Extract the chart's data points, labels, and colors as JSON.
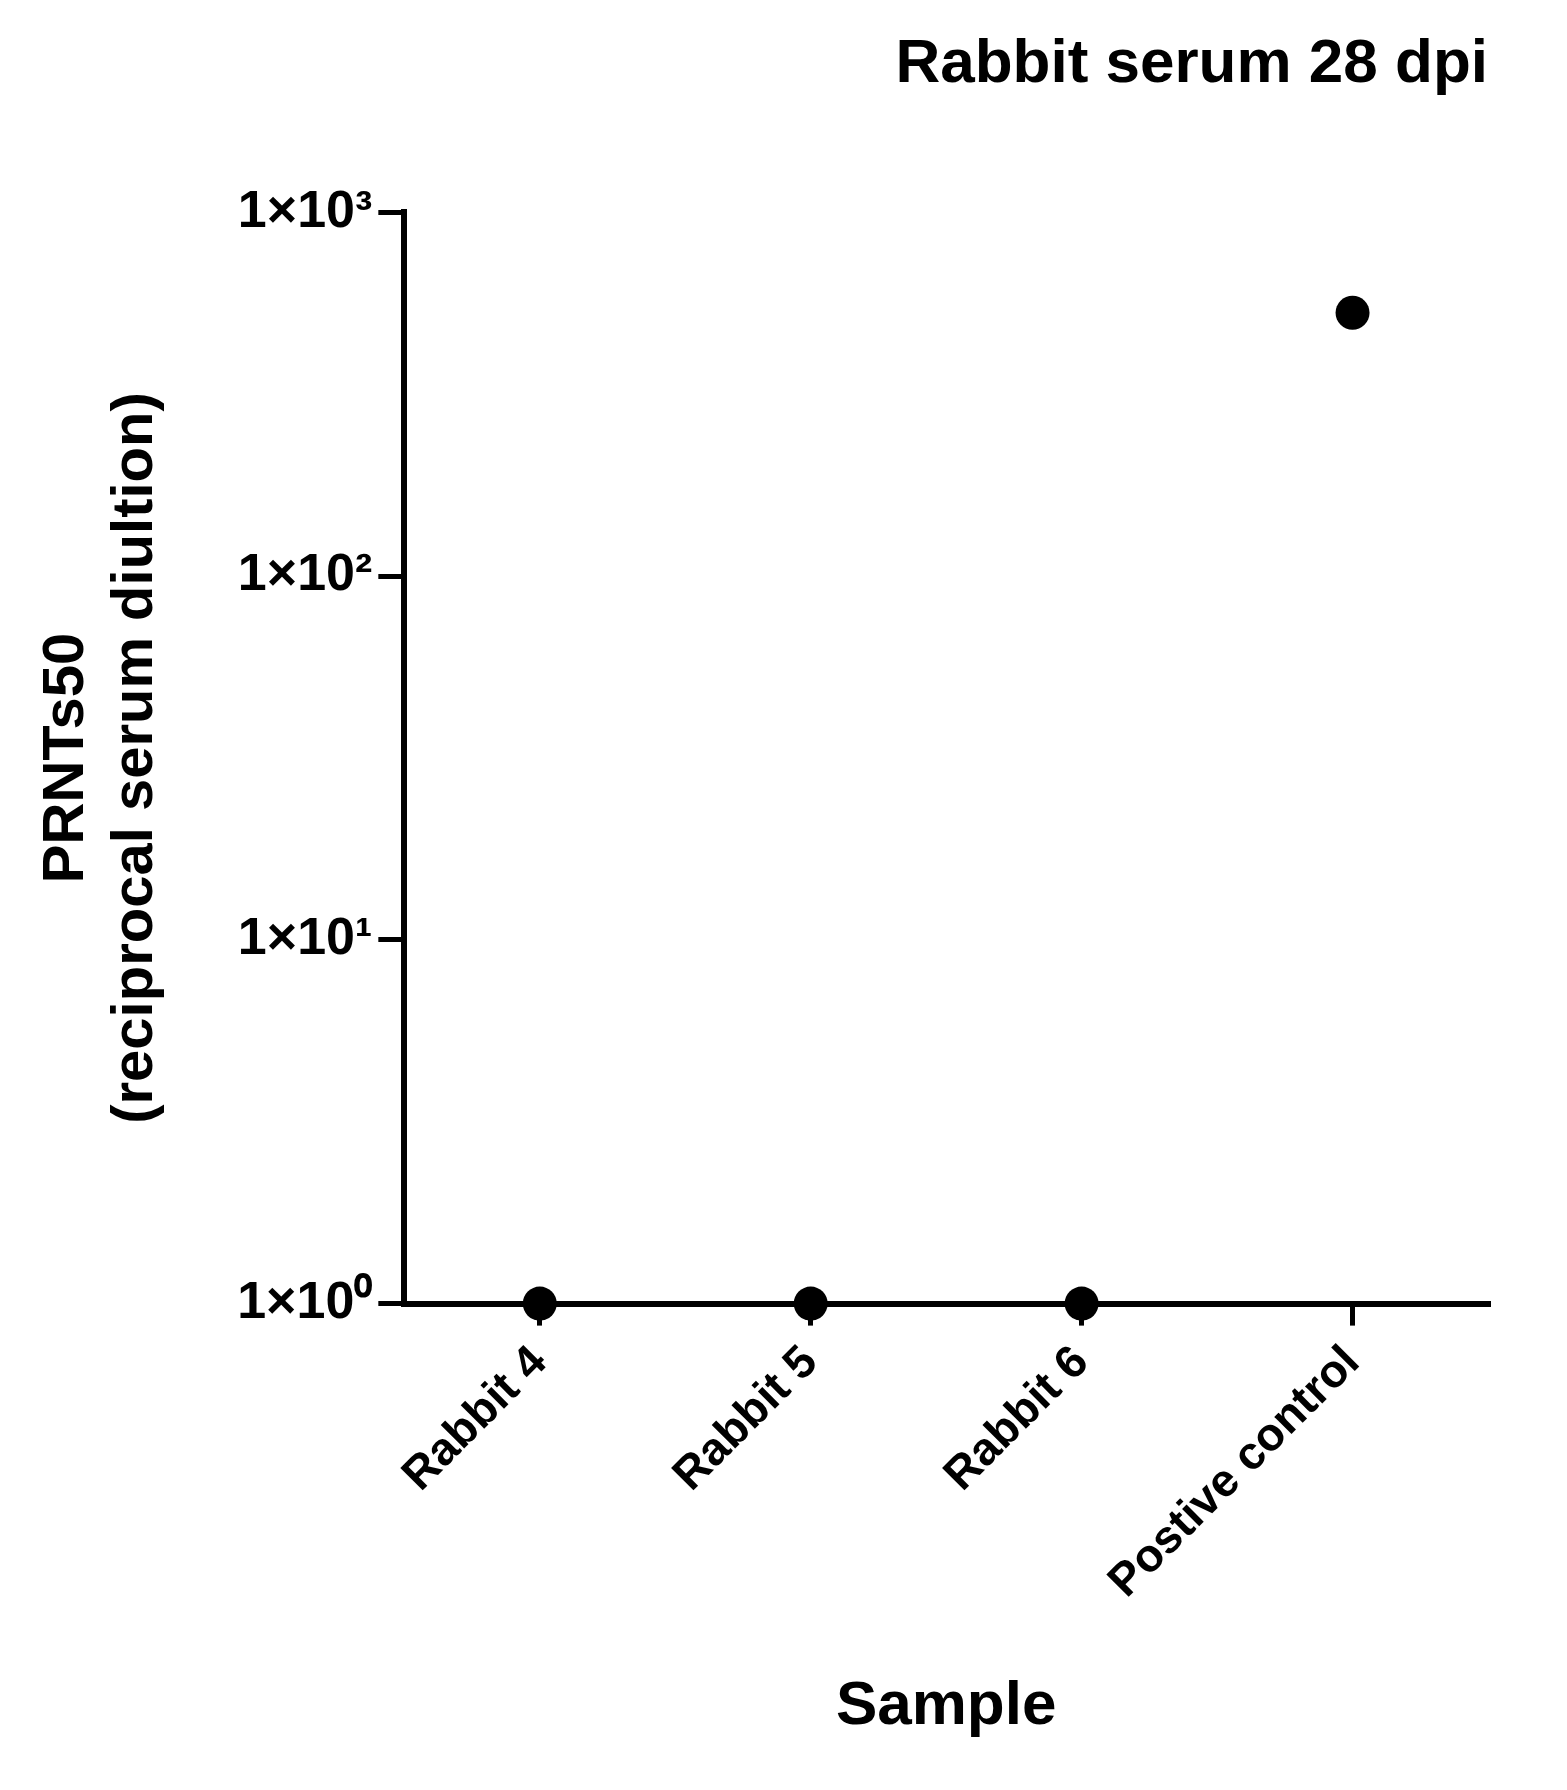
{
  "chart_data": {
    "type": "scatter",
    "title": "Rabbit serum 28 dpi",
    "xlabel": "Sample",
    "ylabel": "PRNTs50\n(reciprocal serum diultion)",
    "categories": [
      "Rabbit 4",
      "Rabbit 5",
      "Rabbit 6",
      "Postive control"
    ],
    "series": [
      {
        "color": "#000000",
        "values": [
          1,
          1,
          1,
          530
        ]
      }
    ],
    "ylim": [
      1,
      1000
    ],
    "yticks": [
      {
        "value": 1,
        "label": "1×10⁰"
      },
      {
        "value": 10,
        "label": "1×10¹"
      },
      {
        "value": 100,
        "label": "1×10²"
      },
      {
        "value": 1000,
        "label": "1×10³"
      }
    ],
    "log": true,
    "grid": false,
    "legend": false,
    "marker": "circle"
  }
}
